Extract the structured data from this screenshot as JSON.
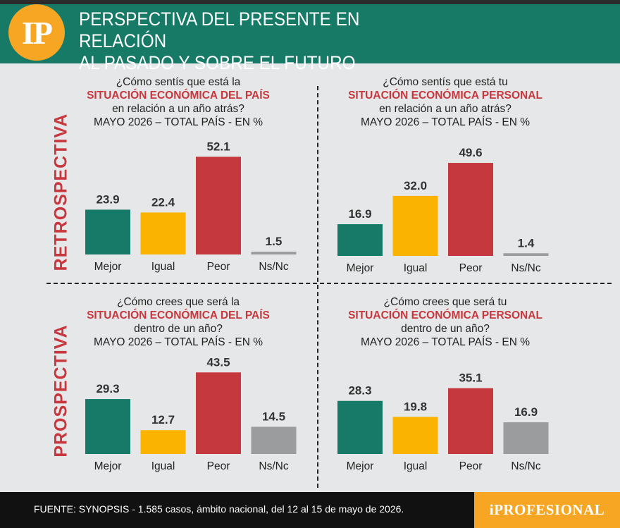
{
  "header": {
    "logo": "IP",
    "title_line1": "PERSPECTIVA DEL PRESENTE EN RELACIÓN",
    "title_line2": "AL PASADO Y SOBRE EL FUTURO"
  },
  "sections": {
    "retro": "RETROSPECTIVA",
    "prosp": "PROSPECTIVA"
  },
  "colors": {
    "Mejor": "#177a68",
    "Igual": "#fab400",
    "Peor": "#c4383e",
    "Ns/Nc": "#9b9c9e"
  },
  "chart_data": [
    {
      "type": "bar",
      "id": "retro_pais",
      "question_l1": "¿Cómo sentís que está la",
      "question_l2": "SITUACIÓN ECONÓMICA DEL PAÍS",
      "question_l3": "en relación a un año atrás?",
      "subtitle": "MAYO 2026 – TOTAL PAÍS - EN %",
      "categories": [
        "Mejor",
        "Igual",
        "Peor",
        "Ns/Nc"
      ],
      "values": [
        23.9,
        22.4,
        52.1,
        1.5
      ]
    },
    {
      "type": "bar",
      "id": "retro_personal",
      "question_l1": "¿Cómo sentís que está tu",
      "question_l2": "SITUACIÓN ECONÓMICA PERSONAL",
      "question_l3": "en relación a un año atrás?",
      "subtitle": "MAYO 2026 – TOTAL PAÍS - EN %",
      "categories": [
        "Mejor",
        "Igual",
        "Peor",
        "Ns/Nc"
      ],
      "values": [
        16.9,
        32.0,
        49.6,
        1.4
      ]
    },
    {
      "type": "bar",
      "id": "prosp_pais",
      "question_l1": "¿Cómo crees que será la",
      "question_l2": "SITUACIÓN ECONÓMICA DEL PAÍS",
      "question_l3": "dentro de un año?",
      "subtitle": "MAYO 2026 – TOTAL PAÍS - EN %",
      "categories": [
        "Mejor",
        "Igual",
        "Peor",
        "Ns/Nc"
      ],
      "values": [
        29.3,
        12.7,
        43.5,
        14.5
      ]
    },
    {
      "type": "bar",
      "id": "prosp_personal",
      "question_l1": "¿Cómo crees que será tu",
      "question_l2": "SITUACIÓN ECONÓMICA PERSONAL",
      "question_l3": "dentro de un año?",
      "subtitle": "MAYO 2026 – TOTAL PAÍS - EN %",
      "categories": [
        "Mejor",
        "Igual",
        "Peor",
        "Ns/Nc"
      ],
      "values": [
        28.3,
        19.8,
        35.1,
        16.9
      ]
    }
  ],
  "footer": {
    "source": "FUENTE: SYNOPSIS - 1.585 casos, ámbito nacional, del 12 al 15 de mayo de 2026.",
    "brand": "iPROFESIONAL"
  }
}
